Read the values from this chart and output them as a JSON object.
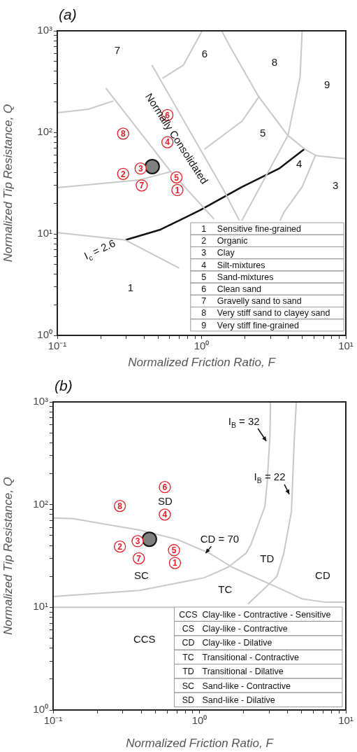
{
  "chart_data": [
    {
      "type": "scatter",
      "title": "(a)",
      "xlabel": "Normalized Friction Ratio, F",
      "ylabel": "Normalized Tip Resistance, Q",
      "log": "xy",
      "grid": false,
      "legend": false,
      "marker": "circle",
      "xlim": [
        0.1,
        10
      ],
      "ylim": [
        1,
        1000
      ],
      "xticks": [
        {
          "value": 0.1,
          "label": "10⁻¹"
        },
        {
          "value": 0.2,
          "label": null
        },
        {
          "value": 0.3,
          "label": null
        },
        {
          "value": 0.4,
          "label": null
        },
        {
          "value": 0.5,
          "label": null
        },
        {
          "value": 0.6,
          "label": null
        },
        {
          "value": 0.7,
          "label": null
        },
        {
          "value": 0.8,
          "label": null
        },
        {
          "value": 0.9,
          "label": null
        },
        {
          "value": 1,
          "label": "10⁰"
        },
        {
          "value": 2,
          "label": null
        },
        {
          "value": 3,
          "label": null
        },
        {
          "value": 4,
          "label": null
        },
        {
          "value": 5,
          "label": null
        },
        {
          "value": 6,
          "label": null
        },
        {
          "value": 7,
          "label": null
        },
        {
          "value": 8,
          "label": null
        },
        {
          "value": 9,
          "label": null
        },
        {
          "value": 10,
          "label": "10¹"
        }
      ],
      "yticks": [
        {
          "value": 1,
          "label": "10⁰"
        },
        {
          "value": 2,
          "label": null
        },
        {
          "value": 3,
          "label": null
        },
        {
          "value": 4,
          "label": null
        },
        {
          "value": 5,
          "label": null
        },
        {
          "value": 6,
          "label": null
        },
        {
          "value": 7,
          "label": null
        },
        {
          "value": 8,
          "label": null
        },
        {
          "value": 9,
          "label": null
        },
        {
          "value": 10,
          "label": "10¹"
        },
        {
          "value": 20,
          "label": null
        },
        {
          "value": 30,
          "label": null
        },
        {
          "value": 40,
          "label": null
        },
        {
          "value": 50,
          "label": null
        },
        {
          "value": 60,
          "label": null
        },
        {
          "value": 70,
          "label": null
        },
        {
          "value": 80,
          "label": null
        },
        {
          "value": 90,
          "label": null
        },
        {
          "value": 100,
          "label": "10²"
        },
        {
          "value": 200,
          "label": null
        },
        {
          "value": 300,
          "label": null
        },
        {
          "value": 400,
          "label": null
        },
        {
          "value": 500,
          "label": null
        },
        {
          "value": 600,
          "label": null
        },
        {
          "value": 700,
          "label": null
        },
        {
          "value": 800,
          "label": null
        },
        {
          "value": 900,
          "label": null
        },
        {
          "value": 1000,
          "label": "10³"
        }
      ],
      "series": [
        {
          "type": "line",
          "marker": "none",
          "color": "#c8c8c8",
          "x": [
            0.1,
            0.164,
            0.245
          ],
          "values": [
            156,
            169,
            204
          ]
        },
        {
          "type": "line",
          "marker": "none",
          "color": "#c8c8c8",
          "x": [
            0.217,
            0.612,
            1.22
          ],
          "values": [
            272,
            41,
            14
          ]
        },
        {
          "type": "line",
          "marker": "none",
          "color": "#c8c8c8",
          "x": [
            0.1,
            0.371,
            0.612
          ],
          "values": [
            28.5,
            34,
            41
          ]
        },
        {
          "type": "line",
          "marker": "none",
          "color": "#c8c8c8",
          "x": [
            0.453,
            1.41,
            1.83
          ],
          "values": [
            459,
            27.6,
            13.5
          ]
        },
        {
          "type": "line",
          "marker": "none",
          "color": "#c8c8c8",
          "x": [
            0.535,
            0.748,
            1.01
          ],
          "values": [
            340,
            459,
            1000
          ]
        },
        {
          "type": "line",
          "marker": "none",
          "color": "#c8c8c8",
          "x": [
            1.38,
            1.58,
            2.47,
            3.94,
            5.21,
            6.22,
            10
          ],
          "values": [
            1000,
            693,
            228,
            94,
            68,
            59,
            55
          ]
        },
        {
          "type": "line",
          "marker": "none",
          "color": "#c8c8c8",
          "x": [
            2.52,
            1.91,
            1.045
          ],
          "values": [
            228,
            129,
            68
          ]
        },
        {
          "type": "line",
          "marker": "none",
          "color": "#c8c8c8",
          "x": [
            4.98,
            4.82,
            3.98,
            2.98,
            1.9
          ],
          "values": [
            1000,
            351,
            94,
            44,
            13.5
          ]
        },
        {
          "type": "line",
          "marker": "none",
          "color": "#c8c8c8",
          "x": [
            6.15,
            4.98,
            3.73,
            3.5
          ],
          "values": [
            59,
            29,
            16.4,
            13.5
          ]
        },
        {
          "type": "line",
          "marker": "none",
          "color": "#c8c8c8",
          "x": [
            0.1,
            0.297,
            0.7
          ],
          "values": [
            10.3,
            8.7,
            4.6
          ]
        },
        {
          "type": "line",
          "marker": "none",
          "color": "#111111",
          "x": [
            0.297,
            0.518,
            0.978,
            1.91,
            3.45,
            5.21
          ],
          "values": [
            8.7,
            11,
            17.1,
            29,
            44,
            69
          ]
        },
        {
          "type": "scatter",
          "name": "6",
          "color": "#e31b23",
          "x": [
            0.58
          ],
          "values": [
            148
          ]
        },
        {
          "type": "scatter",
          "name": "8",
          "color": "#e31b23",
          "x": [
            0.286
          ],
          "values": [
            97
          ]
        },
        {
          "type": "scatter",
          "name": "4",
          "color": "#e31b23",
          "x": [
            0.58
          ],
          "values": [
            80
          ]
        },
        {
          "type": "scatter",
          "name": "3",
          "color": "#e31b23",
          "x": [
            0.378
          ],
          "values": [
            44
          ]
        },
        {
          "type": "scatter",
          "name": "2",
          "color": "#e31b23",
          "x": [
            0.286
          ],
          "values": [
            39
          ]
        },
        {
          "type": "scatter",
          "name": "5",
          "color": "#e31b23",
          "x": [
            0.67
          ],
          "values": [
            36
          ]
        },
        {
          "type": "scatter",
          "name": "7",
          "color": "#e31b23",
          "x": [
            0.385
          ],
          "values": [
            30
          ]
        },
        {
          "type": "scatter",
          "name": "1",
          "color": "#e31b23",
          "x": [
            0.68
          ],
          "values": [
            27
          ]
        },
        {
          "type": "scatter",
          "color": "#808080",
          "x": [
            0.455
          ],
          "values": [
            46
          ]
        }
      ],
      "annotations": [
        "7",
        "6",
        "8",
        "9",
        "5",
        "4",
        "3",
        "1",
        "Normally Consolidated",
        "I$_{c}$ = 2.6",
        "1 Sensitive fine-grained",
        "2 Organic",
        "3 Clay",
        "4 Silt-mixtures",
        "5 Sand-mixtures",
        "6 Clean sand",
        "7 Gravelly sand to sand",
        "8 Very stiff sand to clayey sand",
        "9 Very stiff fine-grained"
      ]
    },
    {
      "type": "scatter",
      "title": "(b)",
      "xlabel": "Normalized Friction Ratio, F",
      "ylabel": "Normalized Tip Resistance, Q",
      "log": "xy",
      "grid": false,
      "legend": false,
      "marker": "circle",
      "xlim": [
        0.1,
        10
      ],
      "ylim": [
        1,
        1000
      ],
      "xticks": [
        {
          "value": 0.1,
          "label": "10⁻¹"
        },
        {
          "value": 0.2,
          "label": null
        },
        {
          "value": 0.3,
          "label": null
        },
        {
          "value": 0.4,
          "label": null
        },
        {
          "value": 0.5,
          "label": null
        },
        {
          "value": 0.6,
          "label": null
        },
        {
          "value": 0.7,
          "label": null
        },
        {
          "value": 0.8,
          "label": null
        },
        {
          "value": 0.9,
          "label": null
        },
        {
          "value": 1,
          "label": "10⁰"
        },
        {
          "value": 2,
          "label": null
        },
        {
          "value": 3,
          "label": null
        },
        {
          "value": 4,
          "label": null
        },
        {
          "value": 5,
          "label": null
        },
        {
          "value": 6,
          "label": null
        },
        {
          "value": 7,
          "label": null
        },
        {
          "value": 8,
          "label": null
        },
        {
          "value": 9,
          "label": null
        },
        {
          "value": 10,
          "label": "10¹"
        }
      ],
      "yticks": [
        {
          "value": 1,
          "label": "10⁰"
        },
        {
          "value": 2,
          "label": null
        },
        {
          "value": 3,
          "label": null
        },
        {
          "value": 4,
          "label": null
        },
        {
          "value": 5,
          "label": null
        },
        {
          "value": 6,
          "label": null
        },
        {
          "value": 7,
          "label": null
        },
        {
          "value": 8,
          "label": null
        },
        {
          "value": 9,
          "label": null
        },
        {
          "value": 10,
          "label": "10¹"
        },
        {
          "value": 20,
          "label": null
        },
        {
          "value": 30,
          "label": null
        },
        {
          "value": 40,
          "label": null
        },
        {
          "value": 50,
          "label": null
        },
        {
          "value": 60,
          "label": null
        },
        {
          "value": 70,
          "label": null
        },
        {
          "value": 80,
          "label": null
        },
        {
          "value": 90,
          "label": null
        },
        {
          "value": 100,
          "label": "10²"
        },
        {
          "value": 200,
          "label": null
        },
        {
          "value": 300,
          "label": null
        },
        {
          "value": 400,
          "label": null
        },
        {
          "value": 500,
          "label": null
        },
        {
          "value": 600,
          "label": null
        },
        {
          "value": 700,
          "label": null
        },
        {
          "value": 800,
          "label": null
        },
        {
          "value": 900,
          "label": null
        },
        {
          "value": 1000,
          "label": "10³"
        }
      ],
      "series": [
        {
          "type": "line",
          "marker": "none",
          "color": "#c8c8c8",
          "x": [
            0.1,
            0.137,
            0.389,
            0.697,
            1.17,
            1.67,
            3.49,
            5.01,
            7.28,
            10
          ],
          "values": [
            74,
            73,
            56.5,
            46,
            33.6,
            24.6,
            15.4,
            12.1,
            11.2,
            11.2
          ]
        },
        {
          "type": "line",
          "marker": "none",
          "color": "#c8c8c8",
          "x": [
            3.06,
            3.03,
            2.9,
            2.8,
            2.25,
            2.08,
            1.57,
            1.08,
            0.389,
            0.1
          ],
          "values": [
            1000,
            463,
            162,
            96,
            41,
            33.6,
            24.6,
            19.4,
            14.6,
            12.7
          ]
        },
        {
          "type": "line",
          "marker": "none",
          "color": "#c8c8c8",
          "x": [
            4.59,
            4.44,
            4.25,
            3.77,
            3.38,
            2.8,
            2.15
          ],
          "values": [
            1000,
            415,
            86,
            33.6,
            20,
            15.4,
            10.8
          ]
        },
        {
          "type": "line",
          "marker": "none",
          "color": "#c8c8c8",
          "x": [
            0.1,
            0.67
          ],
          "values": [
            10,
            10
          ]
        },
        {
          "type": "scatter",
          "name": "6",
          "color": "#e31b23",
          "x": [
            0.58
          ],
          "values": [
            148
          ]
        },
        {
          "type": "scatter",
          "name": "8",
          "color": "#e31b23",
          "x": [
            0.286
          ],
          "values": [
            97
          ]
        },
        {
          "type": "scatter",
          "name": "4",
          "color": "#e31b23",
          "x": [
            0.58
          ],
          "values": [
            80
          ]
        },
        {
          "type": "scatter",
          "name": "3",
          "color": "#e31b23",
          "x": [
            0.378
          ],
          "values": [
            44
          ]
        },
        {
          "type": "scatter",
          "name": "2",
          "color": "#e31b23",
          "x": [
            0.286
          ],
          "values": [
            39
          ]
        },
        {
          "type": "scatter",
          "name": "5",
          "color": "#e31b23",
          "x": [
            0.67
          ],
          "values": [
            36
          ]
        },
        {
          "type": "scatter",
          "name": "7",
          "color": "#e31b23",
          "x": [
            0.385
          ],
          "values": [
            30
          ]
        },
        {
          "type": "scatter",
          "name": "1",
          "color": "#e31b23",
          "x": [
            0.68
          ],
          "values": [
            27
          ]
        },
        {
          "type": "scatter",
          "color": "#808080",
          "x": [
            0.455
          ],
          "values": [
            46
          ]
        }
      ],
      "annotations": [
        "SD",
        "SC",
        "TC",
        "TD",
        "CD",
        "CCS",
        "I$_{B}$ = 32",
        "I$_{B}$ = 22",
        "CD = 70",
        "CCS Clay-like - Contractive - Sensitive",
        "CS Clay-like - Contractive",
        "CD Clay-like - Dilative",
        "TC Transitional - Contractive",
        "TD Transitional - Dilative",
        "SC Sand-like - Contractive",
        "SD Sand-like - Dilative"
      ]
    }
  ]
}
